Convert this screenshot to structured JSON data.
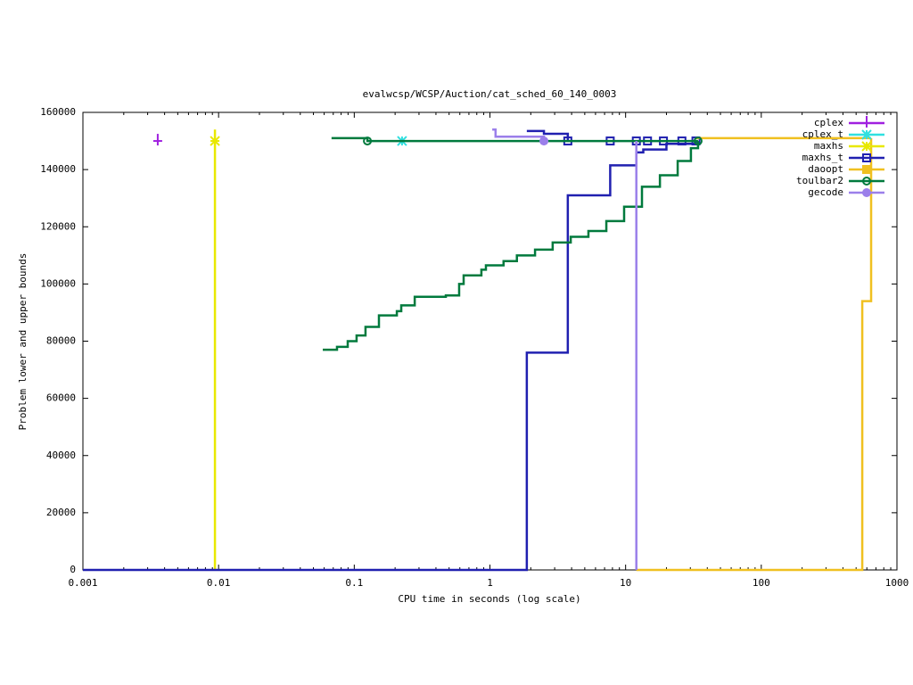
{
  "chart_data": {
    "type": "step-line",
    "title": "evalwcsp/WCSP/Auction/cat_sched_60_140_0003",
    "xlabel": "CPU time in seconds (log scale)",
    "ylabel": "Problem lower and upper bounds",
    "xscale": "log",
    "xlim": [
      0.001,
      1000
    ],
    "xticks": [
      0.001,
      0.01,
      0.1,
      1,
      10,
      100,
      1000
    ],
    "ylim": [
      0,
      160000
    ],
    "yticks": [
      0,
      20000,
      40000,
      60000,
      80000,
      100000,
      120000,
      140000,
      160000
    ],
    "legend": "top-right",
    "series": [
      {
        "name": "cplex",
        "color": "#a020e0",
        "marker": "plus",
        "lines": [],
        "points": {
          "x": [
            0.00356
          ],
          "values": [
            150000
          ]
        }
      },
      {
        "name": "cplex_t",
        "color": "#30e0e0",
        "marker": "star",
        "lines": [],
        "points": {
          "x": [
            0.225
          ],
          "values": [
            150000
          ]
        }
      },
      {
        "name": "maxhs",
        "color": "#e8e800",
        "marker": "star",
        "lines": [
          {
            "x": [
              0.0094,
              0.0094
            ],
            "values": [
              0,
              154000
            ]
          }
        ],
        "points": {
          "x": [
            0.0094
          ],
          "values": [
            150000
          ]
        }
      },
      {
        "name": "maxhs_t",
        "color": "#2020b0",
        "marker": "square",
        "lines": [
          {
            "x": [
              0.001,
              1.87,
              3.75,
              7.7,
              12.0,
              13.5,
              20.0,
              33.0
            ],
            "values": [
              0,
              76000,
              131000,
              141500,
              146000,
              147000,
              149000,
              150000
            ]
          },
          {
            "x": [
              1.87,
              2.5,
              3.75
            ],
            "values": [
              153500,
              152500,
              150000
            ]
          }
        ],
        "points": {
          "x": [
            3.75,
            7.7,
            12.0,
            14.5,
            19.0,
            26.0,
            33.0
          ],
          "values": [
            150000,
            150000,
            150000,
            150000,
            150000,
            150000,
            150000
          ]
        }
      },
      {
        "name": "daoopt",
        "color": "#f0c020",
        "marker": "filled-square",
        "lines": [
          {
            "x": [
              12.0,
              555,
              645
            ],
            "values": [
              0,
              94000,
              151000
            ]
          },
          {
            "x": [
              33.0,
              645
            ],
            "values": [
              151000,
              151000
            ]
          }
        ],
        "points": {
          "x": [],
          "values": []
        }
      },
      {
        "name": "toulbar2",
        "color": "#007a3d",
        "marker": "circle",
        "lines": [
          {
            "x": [
              0.0586,
              0.0746,
              0.0895,
              0.104,
              0.121,
              0.152,
              0.206,
              0.222,
              0.279,
              0.473,
              0.593,
              0.64,
              0.865,
              0.934,
              1.26,
              1.58,
              2.15,
              2.9,
              3.94,
              5.32,
              7.21,
              9.75,
              13.2,
              17.9,
              24.2,
              30.3,
              34.2
            ],
            "values": [
              77000,
              78000,
              80000,
              82000,
              85000,
              89000,
              90500,
              92500,
              95500,
              96000,
              100000,
              103000,
              105000,
              106500,
              108000,
              110000,
              112000,
              114500,
              116500,
              118500,
              122000,
              127000,
              134000,
              138000,
              143000,
              147500,
              150000
            ]
          },
          {
            "x": [
              0.068,
              0.125,
              34.2
            ],
            "values": [
              151000,
              150000,
              150000
            ]
          }
        ],
        "points": {
          "x": [
            0.125,
            34.2
          ],
          "values": [
            150000,
            150000
          ]
        }
      },
      {
        "name": "gecode",
        "color": "#9b7fea",
        "marker": "filled-circle",
        "lines": [
          {
            "x": [
              12.0,
              12.0
            ],
            "values": [
              0,
              150000
            ]
          },
          {
            "x": [
              1.04,
              1.1,
              2.5
            ],
            "values": [
              154000,
              151500,
              150500
            ]
          }
        ],
        "points": {
          "x": [
            2.5
          ],
          "values": [
            150000
          ]
        }
      }
    ]
  }
}
